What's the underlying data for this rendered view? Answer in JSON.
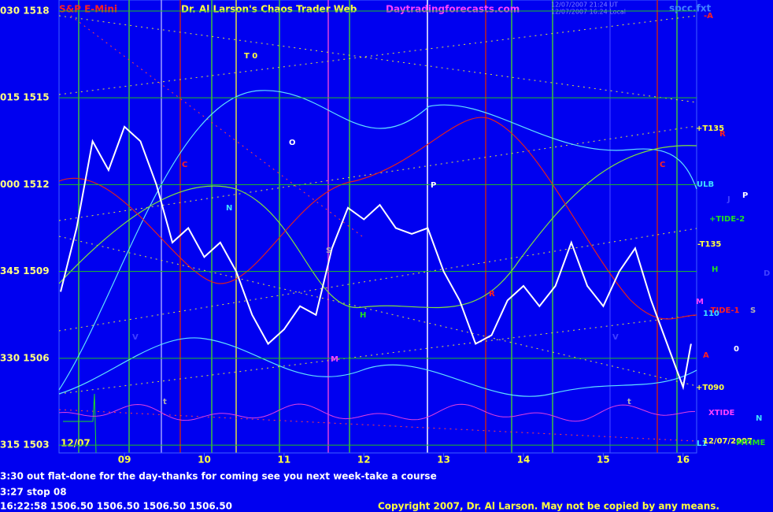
{
  "chart_data": {
    "type": "line",
    "title": "S&P E-Mini",
    "subtitle": "Dr. Al Larson's Chaos Trader Web",
    "website": "Daytradingforecasts.com",
    "timestamps": [
      "12/07/2007 21:24 UT",
      "12/07/2007 16:24 Local"
    ],
    "file": "spcc.fxt",
    "date_label": "12/07",
    "x": [
      8.2,
      8.4,
      8.6,
      8.8,
      9.0,
      9.2,
      9.4,
      9.6,
      9.8,
      10.0,
      10.2,
      10.4,
      10.6,
      10.8,
      11.0,
      11.2,
      11.4,
      11.6,
      11.8,
      12.0,
      12.2,
      12.4,
      12.6,
      12.8,
      13.0,
      13.2,
      13.4,
      13.6,
      13.8,
      14.0,
      14.2,
      14.4,
      14.6,
      14.8,
      15.0,
      15.2,
      15.4,
      15.6,
      15.8,
      16.0,
      16.1
    ],
    "values": [
      1508.3,
      1510.5,
      1513.5,
      1512.5,
      1514.0,
      1513.5,
      1512.0,
      1510.0,
      1510.5,
      1509.5,
      1510.0,
      1509.0,
      1507.5,
      1506.5,
      1507.0,
      1507.8,
      1507.5,
      1509.8,
      1511.2,
      1510.8,
      1511.3,
      1510.5,
      1510.3,
      1510.5,
      1509.0,
      1508.0,
      1506.5,
      1506.8,
      1508.0,
      1508.5,
      1507.8,
      1508.5,
      1510.0,
      1508.5,
      1507.8,
      1509.0,
      1509.8,
      1508.0,
      1506.5,
      1505.0,
      1506.5
    ],
    "color": "#ffffff",
    "xlim": [
      8.18,
      16.17
    ],
    "xticks": [
      {
        "value": 9,
        "label": "09"
      },
      10,
      11,
      12,
      13,
      14,
      15,
      16
    ],
    "ylim": [
      1502.73,
      1518.38
    ],
    "yticks": [
      {
        "value": 1518,
        "label": "030 1518"
      },
      {
        "value": 1515,
        "label": "015 1515"
      },
      {
        "value": 1512,
        "label": "000 1512"
      },
      {
        "value": 1509,
        "label": "345 1509"
      },
      {
        "value": 1506,
        "label": "330 1506"
      },
      {
        "value": 1503,
        "label": "315 1503"
      }
    ],
    "grid": true,
    "annotations": [
      "T 0",
      "O",
      "C",
      "N",
      "S",
      "P",
      "R",
      "H",
      "V",
      "M",
      "V",
      "C",
      "t",
      "t",
      "+T135",
      "R",
      "ULB",
      "J",
      "P",
      "+TIDE-2",
      "-T135",
      "H",
      "D",
      "M",
      "-TIDE-1",
      "S",
      "110",
      "0",
      "A",
      "+T090",
      "XTIDE",
      "N",
      "L1",
      "12/07/2007",
      "MTIME",
      "-A"
    ],
    "status_lines": [
      "3:30 out flat-done for the day-thanks for coming see you next week-take a course",
      "3:27 stop 08",
      "16:22:58  1506.50 1506.50 1506.50 1506.50"
    ],
    "copyright": "Copyright 2007, Dr. Al Larson. May not be copied by any means."
  }
}
